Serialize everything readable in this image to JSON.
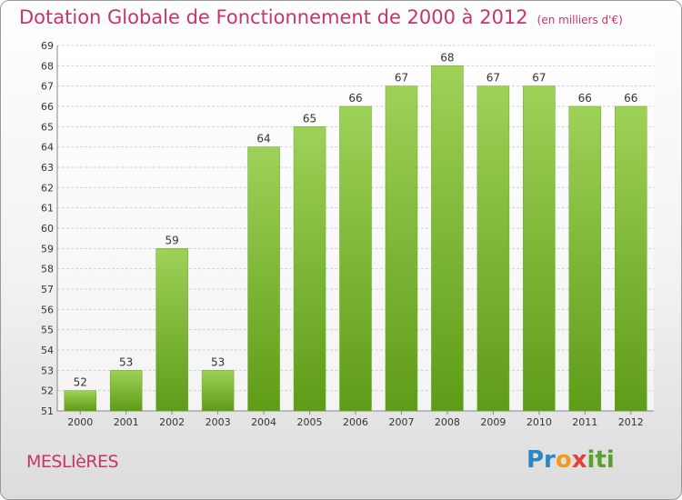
{
  "header": {
    "title": "Dotation Globale de Fonctionnement de 2000 à 2012",
    "unit": "(en milliers d'€)"
  },
  "footer": {
    "commune": "MESLIèRES",
    "logo_text": "Proxiti"
  },
  "colors": {
    "title": "#c8336b",
    "bar_top": "#9ed158",
    "bar_bottom": "#5e9c18",
    "grid": "#cfcfcf"
  },
  "chart_data": {
    "type": "bar",
    "categories": [
      "2000",
      "2001",
      "2002",
      "2003",
      "2004",
      "2005",
      "2006",
      "2007",
      "2008",
      "2009",
      "2010",
      "2011",
      "2012"
    ],
    "values": [
      52,
      53,
      59,
      53,
      64,
      65,
      66,
      67,
      68,
      67,
      67,
      66,
      66
    ],
    "ylim": [
      51,
      69
    ],
    "yticks": [
      51,
      52,
      53,
      54,
      55,
      56,
      57,
      58,
      59,
      60,
      61,
      62,
      63,
      64,
      65,
      66,
      67,
      68,
      69
    ],
    "grid": true,
    "title": "Dotation Globale de Fonctionnement de 2000 à 2012",
    "xlabel": "",
    "ylabel": ""
  }
}
